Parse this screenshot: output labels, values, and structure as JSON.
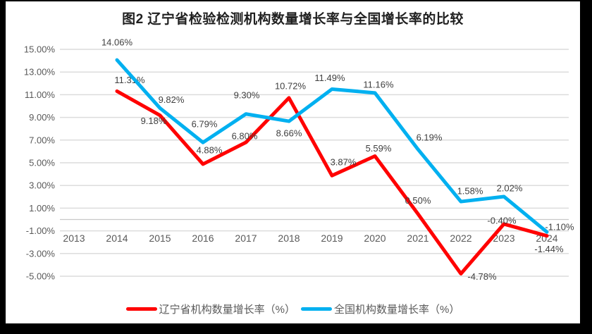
{
  "frame": {
    "border_color": "#000000",
    "canvas_background": "#FFFFFF"
  },
  "chart_data": {
    "type": "line",
    "title": "图2 辽宁省检验检测机构数量增长率与全国增长率的比较",
    "categories": [
      "2013",
      "2014",
      "2015",
      "2016",
      "2017",
      "2018",
      "2019",
      "2020",
      "2021",
      "2022",
      "2023",
      "2024"
    ],
    "y_axis": {
      "ticks": [
        "15.00%",
        "13.00%",
        "11.00%",
        "9.00%",
        "7.00%",
        "5.00%",
        "3.00%",
        "1.00%",
        "-1.00%",
        "-3.00%",
        "-5.00%"
      ],
      "tick_values": [
        15,
        13,
        11,
        9,
        7,
        5,
        3,
        1,
        -1,
        -3,
        -5
      ],
      "min": -5,
      "max": 15,
      "grid": true
    },
    "grid_color": "#DCDCDC",
    "axis_line_color": "#C9C9C9",
    "axis_text_color": "#595959",
    "data_label_color": "#404040",
    "legend_position": "bottom",
    "series": [
      {
        "name": "辽宁省机构数量增长率（%）",
        "color": "#FF0000",
        "start_index": 1,
        "values": [
          11.31,
          9.18,
          4.88,
          6.8,
          10.72,
          3.87,
          5.59,
          0.5,
          -4.78,
          -0.4,
          -1.44
        ],
        "labels": [
          "11.31%",
          "9.18%",
          "4.88%",
          "6.80%",
          "10.72%",
          "3.87%",
          "5.59%",
          "0.50%",
          "-4.78%",
          "-0.40%",
          "-1.44%"
        ],
        "label_offsets": [
          [
            18,
            -16
          ],
          [
            -9,
            8
          ],
          [
            9,
            -20
          ],
          [
            -2,
            -9
          ],
          [
            2,
            -17
          ],
          [
            16,
            -19
          ],
          [
            5,
            -11
          ],
          [
            0,
            -19
          ],
          [
            30,
            4
          ],
          [
            -3,
            -5
          ],
          [
            3,
            19
          ]
        ]
      },
      {
        "name": "全国机构数量增长率（%）",
        "color": "#00B0F0",
        "start_index": 1,
        "values": [
          14.06,
          9.82,
          6.79,
          9.3,
          8.66,
          11.49,
          11.16,
          6.19,
          1.58,
          2.02,
          -1.1
        ],
        "labels": [
          "14.06%",
          "9.82%",
          "6.79%",
          "9.30%",
          "8.66%",
          "11.49%",
          "11.16%",
          "6.19%",
          "1.58%",
          "2.02%",
          "-1.10%"
        ],
        "label_offsets": [
          [
            0,
            -25
          ],
          [
            16,
            -12
          ],
          [
            2,
            -26
          ],
          [
            1,
            -27
          ],
          [
            0,
            17
          ],
          [
            -3,
            -16
          ],
          [
            5,
            -12
          ],
          [
            16,
            -17
          ],
          [
            13,
            -15
          ],
          [
            8,
            -12
          ],
          [
            18,
            -7
          ]
        ]
      }
    ]
  }
}
